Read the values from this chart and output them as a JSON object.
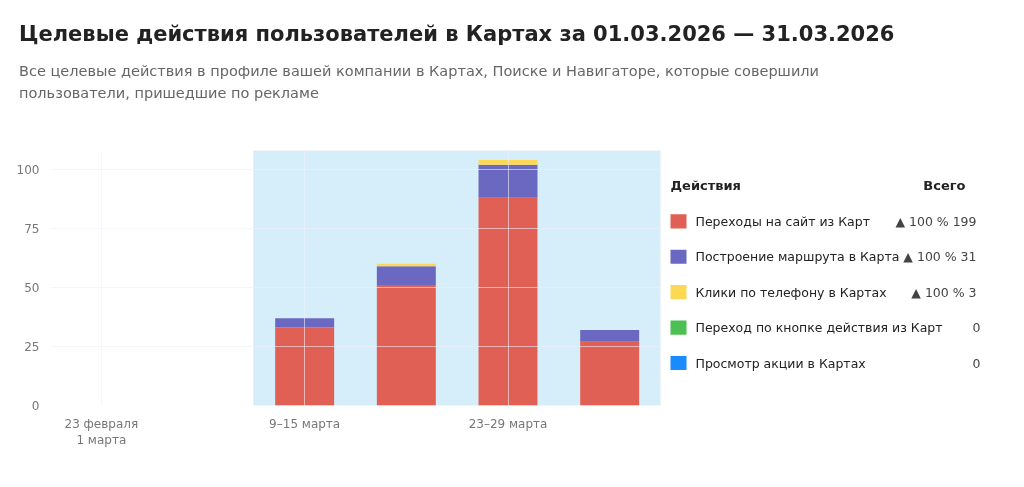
{
  "chart_data": {
    "type": "bar",
    "stacked": true,
    "title": "Целевые действия пользователей в Картах за 01.03.2026 — 31.03.2026",
    "subtitle": "Все целевые действия в профиле вашей компании в Картах, Поиске и Навигаторе, которые совершили пользователи, пришедшие по рекламе",
    "categories": [
      "23 февраля\n1 марта",
      null,
      "9–15 марта",
      null,
      "23–29 марта",
      null
    ],
    "series": [
      {
        "name": "Переходы на сайт из Карт",
        "color": "#e06055",
        "values": [
          0,
          0,
          33,
          51,
          88,
          27
        ]
      },
      {
        "name": "Построение маршрута в Карта",
        "color": "#6b68c1",
        "values": [
          0,
          0,
          4,
          8,
          14,
          5
        ]
      },
      {
        "name": "Клики по телефону в Картах",
        "color": "#fdd854",
        "values": [
          0,
          0,
          0,
          1,
          2,
          0
        ]
      },
      {
        "name": "Переход по кнопке действия из Карт",
        "color": "#4cc052",
        "values": [
          0,
          0,
          0,
          0,
          0,
          0
        ]
      },
      {
        "name": "Просмотр акции в Картах",
        "color": "#1a8cff",
        "values": [
          0,
          0,
          0,
          0,
          0,
          0
        ]
      }
    ],
    "ylim": [
      0,
      108
    ],
    "yticks": [
      0,
      25,
      50,
      75,
      100
    ],
    "grid": true,
    "legend": "right",
    "legend_title": "Действия",
    "annotations": [
      "Всего",
      "▲ 100 %  199",
      "▲ 100 %  31",
      "▲ 100 %  3",
      "0",
      "0"
    ]
  }
}
